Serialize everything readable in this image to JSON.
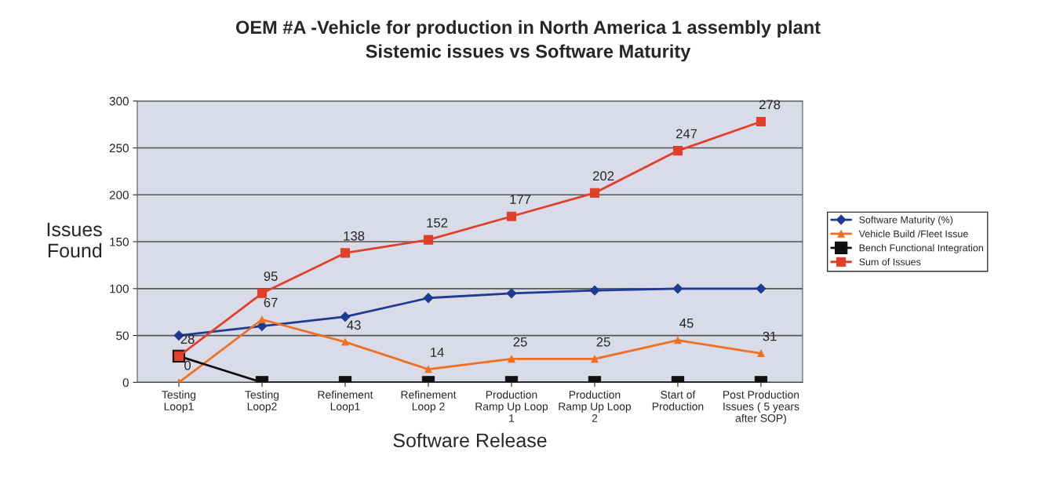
{
  "chart_data": {
    "type": "line",
    "title": "OEM #A -Vehicle for production in North America 1 assembly plant",
    "subtitle": "Sistemic issues vs Software Maturity",
    "xlabel": "Software Release",
    "ylabel": "Issues\nFound",
    "categories": [
      "Testing\nLoop1",
      "Testing\nLoop2",
      "Refinement\nLoop1",
      "Refinement\nLoop 2",
      "Production\nRamp Up Loop\n1",
      "Production\nRamp Up Loop\n2",
      "Start of\nProduction",
      "Post Production\nIssues ( 5 years\nafter SOP)"
    ],
    "series": [
      {
        "name": "Software Maturity (%)",
        "color": "#1f3a93",
        "marker": "diamond",
        "values": [
          50,
          60,
          70,
          90,
          95,
          98,
          100,
          100
        ]
      },
      {
        "name": "Vehicle Build /Fleet Issue",
        "color": "#f07020",
        "marker": "triangle",
        "values": [
          0,
          67,
          43,
          14,
          25,
          25,
          45,
          31
        ],
        "value_labels": [
          "0",
          "67",
          "43",
          "14",
          "25",
          "25",
          "45",
          "31"
        ]
      },
      {
        "name": "Bench Functional Integration",
        "color": "#101010",
        "marker": "square",
        "values": [
          28,
          0,
          0,
          0,
          0,
          0,
          0,
          0
        ]
      },
      {
        "name": "Sum of Issues",
        "color": "#e0402a",
        "marker": "square",
        "values": [
          28,
          95,
          138,
          152,
          177,
          202,
          247,
          278
        ],
        "value_labels": [
          "28",
          "95",
          "138",
          "152",
          "177",
          "202",
          "247",
          "278"
        ]
      }
    ],
    "ylim": [
      0,
      300
    ],
    "yticks": [
      0,
      50,
      100,
      150,
      200,
      250,
      300
    ],
    "grid": "y",
    "legend": "right"
  }
}
